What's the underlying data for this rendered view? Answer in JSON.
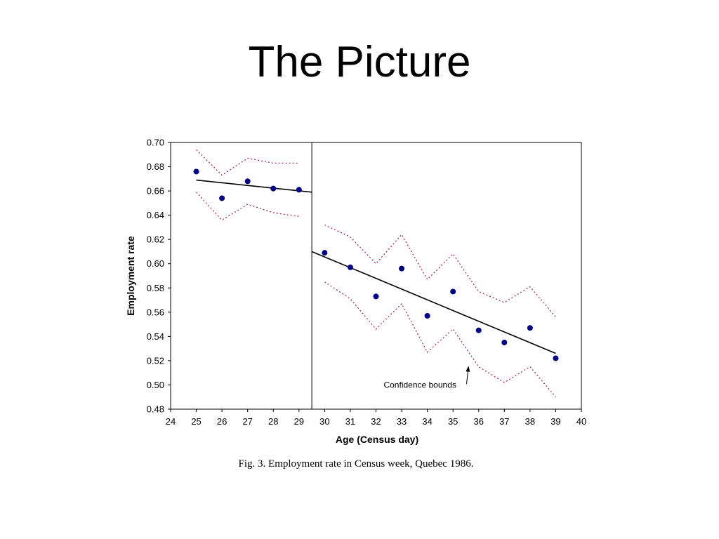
{
  "slide": {
    "title": "The Picture"
  },
  "chart_data": {
    "type": "scatter",
    "xlabel": "Age (Census day)",
    "ylabel": "Employment rate",
    "caption": "Fig. 3.  Employment rate in Census week, Quebec 1986.",
    "xlim": [
      24,
      40
    ],
    "ylim": [
      0.48,
      0.7
    ],
    "xticks": [
      24,
      25,
      26,
      27,
      28,
      29,
      30,
      31,
      32,
      33,
      34,
      35,
      36,
      37,
      38,
      39,
      40
    ],
    "yticks": [
      "0.48",
      "0.50",
      "0.52",
      "0.54",
      "0.56",
      "0.58",
      "0.60",
      "0.62",
      "0.64",
      "0.66",
      "0.68",
      "0.70"
    ],
    "grid": false,
    "discontinuity_x": 29.5,
    "colors": {
      "points": "#000080",
      "fit": "#000000",
      "bounds": "#a0306a"
    },
    "points": {
      "x": [
        25,
        26,
        27,
        28,
        29,
        30,
        31,
        32,
        33,
        34,
        35,
        36,
        37,
        38,
        39
      ],
      "y": [
        0.676,
        0.654,
        0.668,
        0.662,
        0.661,
        0.609,
        0.597,
        0.573,
        0.596,
        0.557,
        0.577,
        0.545,
        0.535,
        0.547,
        0.522
      ]
    },
    "fit_lines": [
      {
        "x": [
          25,
          29.5
        ],
        "y": [
          0.669,
          0.659
        ]
      },
      {
        "x": [
          29.5,
          39
        ],
        "y": [
          0.61,
          0.526
        ]
      }
    ],
    "upper_bounds": [
      {
        "x": [
          25,
          26,
          27,
          28,
          29
        ],
        "y": [
          0.694,
          0.673,
          0.687,
          0.683,
          0.683
        ]
      },
      {
        "x": [
          30,
          31,
          32,
          33,
          34,
          35,
          36,
          37,
          38,
          39
        ],
        "y": [
          0.632,
          0.622,
          0.6,
          0.624,
          0.587,
          0.608,
          0.577,
          0.568,
          0.581,
          0.556
        ]
      }
    ],
    "lower_bounds": [
      {
        "x": [
          25,
          26,
          27,
          28,
          29
        ],
        "y": [
          0.659,
          0.636,
          0.649,
          0.642,
          0.639
        ]
      },
      {
        "x": [
          30,
          31,
          32,
          33,
          34,
          35,
          36,
          37,
          38,
          39
        ],
        "y": [
          0.585,
          0.571,
          0.546,
          0.567,
          0.527,
          0.546,
          0.515,
          0.502,
          0.515,
          0.49
        ]
      }
    ],
    "annotation": {
      "text": "Confidence bounds",
      "text_x": 32.3,
      "text_y": 0.5,
      "arrow_to_x": 35.6,
      "arrow_to_y": 0.515
    }
  }
}
